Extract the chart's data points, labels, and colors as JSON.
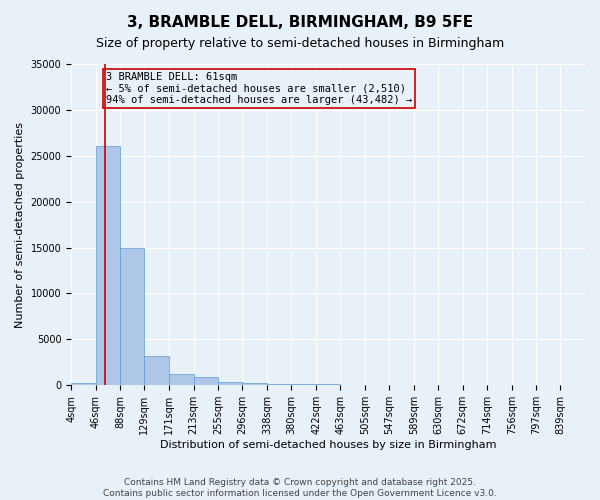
{
  "title": "3, BRAMBLE DELL, BIRMINGHAM, B9 5FE",
  "subtitle": "Size of property relative to semi-detached houses in Birmingham",
  "xlabel": "Distribution of semi-detached houses by size in Birmingham",
  "ylabel": "Number of semi-detached properties",
  "footer_line1": "Contains HM Land Registry data © Crown copyright and database right 2025.",
  "footer_line2": "Contains public sector information licensed under the Open Government Licence v3.0.",
  "bin_labels": [
    "4sqm",
    "46sqm",
    "88sqm",
    "129sqm",
    "171sqm",
    "213sqm",
    "255sqm",
    "296sqm",
    "338sqm",
    "380sqm",
    "422sqm",
    "463sqm",
    "505sqm",
    "547sqm",
    "589sqm",
    "630sqm",
    "672sqm",
    "714sqm",
    "756sqm",
    "797sqm",
    "839sqm"
  ],
  "bin_edges": [
    4,
    46,
    88,
    129,
    171,
    213,
    255,
    296,
    338,
    380,
    422,
    463,
    505,
    547,
    589,
    630,
    672,
    714,
    756,
    797,
    839
  ],
  "values": [
    200,
    26100,
    15000,
    3200,
    1200,
    900,
    400,
    200,
    150,
    100,
    80,
    60,
    40,
    30,
    20,
    15,
    10,
    8,
    5,
    3,
    2
  ],
  "bar_color": "#aec6e8",
  "bar_edgecolor": "#5b9bd5",
  "property_size": 61,
  "property_line_color": "#cc0000",
  "annotation_text": "3 BRAMBLE DELL: 61sqm\n← 5% of semi-detached houses are smaller (2,510)\n94% of semi-detached houses are larger (43,482) →",
  "annotation_box_color": "#cc0000",
  "ylim": [
    0,
    35000
  ],
  "yticks": [
    0,
    5000,
    10000,
    15000,
    20000,
    25000,
    30000,
    35000
  ],
  "bg_color": "#e8f0f8",
  "grid_color": "#ffffff",
  "title_fontsize": 11,
  "subtitle_fontsize": 9,
  "axis_label_fontsize": 8,
  "tick_fontsize": 7,
  "annotation_fontsize": 7.5,
  "footer_fontsize": 6.5
}
